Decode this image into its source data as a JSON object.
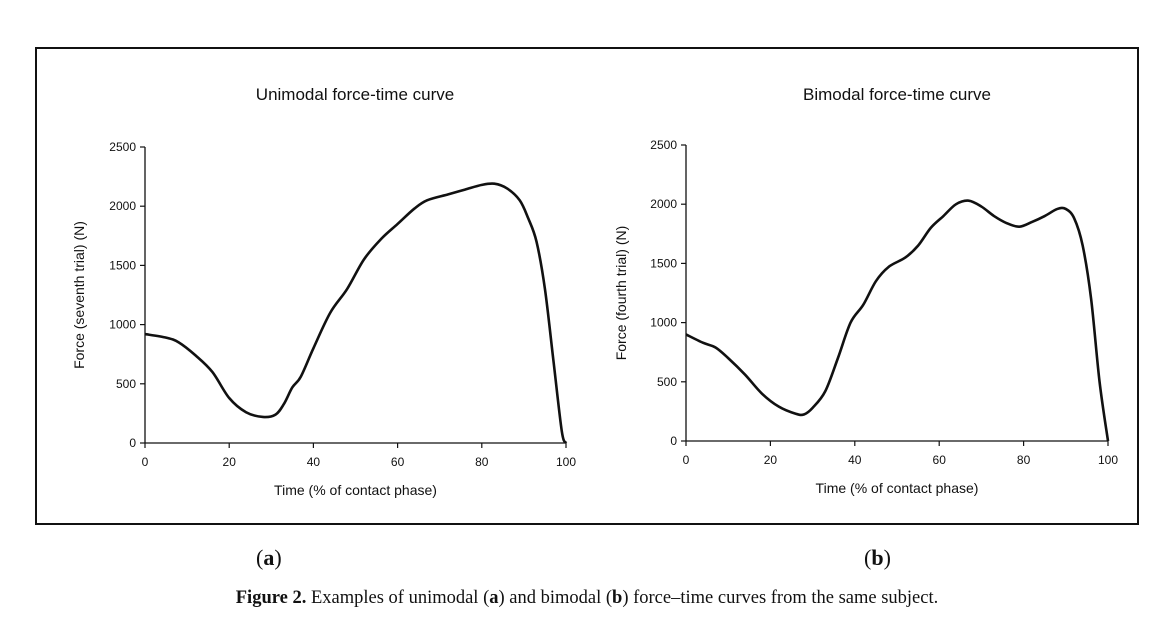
{
  "chart_data": [
    {
      "type": "line",
      "title": "Unimodal force-time curve",
      "xlabel": "Time (% of contact phase)",
      "ylabel": "Force (seventh trial) (N)",
      "xlim": [
        0,
        100
      ],
      "ylim": [
        0,
        2500
      ],
      "xticks": [
        0,
        20,
        40,
        60,
        80,
        100
      ],
      "yticks": [
        0,
        500,
        1000,
        1500,
        2000,
        2500
      ],
      "grid": false,
      "series": [
        {
          "x": [
            0,
            5,
            8,
            12,
            16,
            20,
            24,
            28,
            31,
            33,
            35,
            37,
            40,
            44,
            48,
            52,
            56,
            60,
            64,
            67,
            72,
            76,
            80,
            83,
            86,
            89,
            91,
            93,
            95,
            97,
            99,
            100
          ],
          "y": [
            920,
            890,
            850,
            740,
            600,
            380,
            260,
            220,
            240,
            330,
            470,
            560,
            800,
            1100,
            1300,
            1550,
            1720,
            1850,
            1980,
            2050,
            2100,
            2140,
            2180,
            2190,
            2150,
            2050,
            1900,
            1700,
            1300,
            700,
            100,
            0
          ]
        }
      ]
    },
    {
      "type": "line",
      "title": "Bimodal force-time curve",
      "xlabel": "Time (% of contact phase)",
      "ylabel": "Force (fourth trial) (N)",
      "xlim": [
        0,
        100
      ],
      "ylim": [
        0,
        2500
      ],
      "xticks": [
        0,
        20,
        40,
        60,
        80,
        100
      ],
      "yticks": [
        0,
        500,
        1000,
        1500,
        2000,
        2500
      ],
      "grid": false,
      "series": [
        {
          "x": [
            0,
            4,
            7,
            10,
            14,
            18,
            22,
            26,
            28,
            30,
            33,
            36,
            39,
            42,
            45,
            48,
            52,
            55,
            58,
            61,
            64,
            67,
            70,
            73,
            76,
            79,
            82,
            85,
            88,
            90,
            92,
            94,
            96,
            98,
            100
          ],
          "y": [
            900,
            830,
            790,
            700,
            560,
            400,
            290,
            230,
            225,
            280,
            420,
            700,
            1000,
            1150,
            1350,
            1470,
            1550,
            1650,
            1800,
            1900,
            2000,
            2030,
            1980,
            1900,
            1840,
            1810,
            1850,
            1900,
            1960,
            1960,
            1880,
            1650,
            1200,
            500,
            0
          ]
        }
      ]
    }
  ],
  "panel_labels": [
    "a",
    "b"
  ],
  "caption": {
    "label": "Figure 2.",
    "text_1": " Examples of unimodal (",
    "a": "a",
    "text_2": ") and bimodal (",
    "b": "b",
    "text_3": ") force–time curves from the same subject."
  },
  "colors": {
    "line": "#111111",
    "frame": "#111111"
  }
}
